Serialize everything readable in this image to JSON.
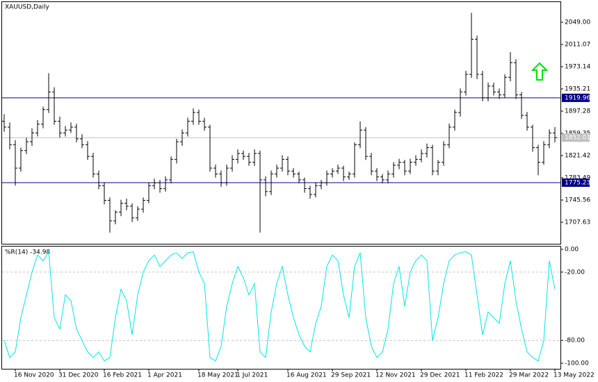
{
  "chart_data": {
    "type": "ohlc",
    "title": "XAUUSD,Daily",
    "categories": [
      null,
      null,
      "16 Nov 2020",
      null,
      null,
      null,
      null,
      null,
      null,
      null,
      "31 Dec 2020",
      null,
      null,
      null,
      null,
      null,
      null,
      null,
      "16 Feb 2021",
      null,
      null,
      null,
      null,
      null,
      null,
      null,
      "1 Apr 2021",
      null,
      null,
      null,
      null,
      null,
      null,
      null,
      null,
      "18 May 2021",
      null,
      null,
      null,
      null,
      null,
      null,
      "1 Jul 2021",
      null,
      null,
      null,
      null,
      null,
      null,
      null,
      null,
      "16 Aug 2021",
      null,
      null,
      null,
      null,
      null,
      null,
      null,
      "29 Sep 2021",
      null,
      null,
      null,
      null,
      null,
      null,
      null,
      "12 Nov 2021",
      null,
      null,
      null,
      null,
      null,
      null,
      null,
      "29 Dec 2021",
      null,
      null,
      null,
      null,
      null,
      null,
      null,
      "11 Feb 2022",
      null,
      null,
      null,
      null,
      null,
      null,
      null,
      "29 Mar 2022",
      null,
      null,
      null,
      null,
      null,
      null,
      null,
      "13 May 2022"
    ],
    "open": [
      1880,
      1870,
      1840,
      1800,
      1830,
      1845,
      1860,
      1875,
      1900,
      1930,
      1880,
      1860,
      1865,
      1870,
      1850,
      1840,
      1820,
      1790,
      1770,
      1745,
      1710,
      1725,
      1740,
      1735,
      1715,
      1730,
      1745,
      1770,
      1775,
      1765,
      1780,
      1815,
      1845,
      1860,
      1880,
      1895,
      1880,
      1870,
      1800,
      1790,
      1775,
      1800,
      1815,
      1825,
      1820,
      1810,
      1825,
      1780,
      1760,
      1790,
      1800,
      1815,
      1795,
      1790,
      1780,
      1765,
      1755,
      1770,
      1775,
      1790,
      1795,
      1800,
      1785,
      1790,
      1840,
      1865,
      1820,
      1795,
      1785,
      1780,
      1790,
      1805,
      1810,
      1795,
      1810,
      1815,
      1825,
      1835,
      1795,
      1810,
      1840,
      1870,
      1895,
      1930,
      1960,
      2020,
      1960,
      1920,
      1940,
      1930,
      1925,
      1955,
      1980,
      1925,
      1890,
      1870,
      1835,
      1810,
      1840,
      1860
    ],
    "high": [
      1892,
      1878,
      1848,
      1835,
      1852,
      1868,
      1882,
      1905,
      1962,
      1938,
      1888,
      1872,
      1878,
      1876,
      1858,
      1846,
      1826,
      1796,
      1776,
      1750,
      1728,
      1746,
      1748,
      1740,
      1735,
      1750,
      1776,
      1782,
      1780,
      1786,
      1820,
      1850,
      1866,
      1886,
      1902,
      1900,
      1886,
      1874,
      1806,
      1796,
      1806,
      1822,
      1832,
      1830,
      1826,
      1832,
      1830,
      1786,
      1796,
      1806,
      1822,
      1820,
      1800,
      1794,
      1784,
      1770,
      1776,
      1780,
      1796,
      1800,
      1806,
      1804,
      1794,
      1844,
      1880,
      1870,
      1826,
      1800,
      1790,
      1796,
      1810,
      1816,
      1814,
      1816,
      1822,
      1832,
      1842,
      1840,
      1814,
      1846,
      1876,
      1900,
      1936,
      1966,
      2065,
      2026,
      1966,
      1946,
      1946,
      1936,
      1960,
      1998,
      1986,
      1930,
      1896,
      1874,
      1840,
      1846,
      1866,
      1870
    ],
    "low": [
      1862,
      1832,
      1770,
      1794,
      1824,
      1838,
      1854,
      1868,
      1894,
      1874,
      1852,
      1854,
      1860,
      1844,
      1834,
      1814,
      1784,
      1764,
      1738,
      1690,
      1704,
      1718,
      1728,
      1708,
      1710,
      1724,
      1740,
      1764,
      1758,
      1760,
      1774,
      1808,
      1838,
      1854,
      1874,
      1874,
      1864,
      1794,
      1784,
      1768,
      1770,
      1794,
      1808,
      1814,
      1804,
      1804,
      1690,
      1752,
      1754,
      1784,
      1794,
      1788,
      1784,
      1774,
      1758,
      1748,
      1750,
      1764,
      1770,
      1784,
      1790,
      1778,
      1780,
      1784,
      1834,
      1814,
      1788,
      1778,
      1774,
      1774,
      1784,
      1798,
      1788,
      1790,
      1804,
      1810,
      1818,
      1788,
      1788,
      1804,
      1834,
      1864,
      1888,
      1924,
      1954,
      1952,
      1914,
      1914,
      1924,
      1918,
      1920,
      1948,
      1918,
      1884,
      1864,
      1828,
      1788,
      1806,
      1834,
      1844
    ],
    "close": [
      1870,
      1840,
      1800,
      1830,
      1845,
      1860,
      1875,
      1900,
      1930,
      1880,
      1860,
      1865,
      1870,
      1850,
      1840,
      1820,
      1790,
      1770,
      1745,
      1710,
      1725,
      1740,
      1735,
      1715,
      1730,
      1745,
      1770,
      1775,
      1765,
      1780,
      1815,
      1845,
      1860,
      1880,
      1895,
      1880,
      1870,
      1800,
      1790,
      1775,
      1800,
      1815,
      1825,
      1820,
      1810,
      1825,
      1780,
      1760,
      1790,
      1800,
      1815,
      1795,
      1790,
      1780,
      1765,
      1755,
      1770,
      1775,
      1790,
      1795,
      1800,
      1785,
      1790,
      1840,
      1865,
      1820,
      1795,
      1785,
      1780,
      1790,
      1805,
      1810,
      1795,
      1810,
      1815,
      1825,
      1835,
      1795,
      1810,
      1840,
      1870,
      1895,
      1930,
      1960,
      2020,
      1960,
      1920,
      1940,
      1930,
      1925,
      1955,
      1980,
      1925,
      1890,
      1870,
      1835,
      1810,
      1840,
      1860,
      1852.01
    ],
    "color": "#000000",
    "ylim": [
      1672.07,
      2083.37
    ],
    "yticks": [
      {
        "value": 2049,
        "label": "2049.00"
      },
      2011.07,
      1973.14,
      1935.21,
      1897.28,
      1859.35,
      1821.42,
      1783.49,
      1745.56,
      1707.63
    ],
    "hlines": [
      {
        "value": 1919.96,
        "color": "#000080"
      },
      {
        "value": 1775.23,
        "color": "#000080"
      },
      {
        "value": 1852.01,
        "color": "#c0c0c0"
      }
    ],
    "indicator": {
      "type": "line",
      "title": "%R(14) -34.98",
      "color": "#00e5e5",
      "values": [
        -80,
        -95,
        -90,
        -60,
        -40,
        -20,
        -5,
        -10,
        -2,
        -60,
        -70,
        -40,
        -45,
        -70,
        -80,
        -90,
        -95,
        -90,
        -98,
        -95,
        -60,
        -35,
        -45,
        -75,
        -40,
        -20,
        -10,
        -5,
        -15,
        -10,
        -5,
        -3,
        -8,
        -3,
        -2,
        -20,
        -30,
        -95,
        -98,
        -85,
        -50,
        -30,
        -15,
        -25,
        -40,
        -30,
        -90,
        -95,
        -55,
        -30,
        -15,
        -40,
        -60,
        -75,
        -85,
        -90,
        -65,
        -50,
        -15,
        -5,
        -10,
        -40,
        -60,
        -15,
        -3,
        -60,
        -85,
        -95,
        -90,
        -70,
        -30,
        -15,
        -50,
        -20,
        -10,
        -5,
        -10,
        -80,
        -60,
        -30,
        -10,
        -5,
        -3,
        -2,
        -5,
        -40,
        -75,
        -55,
        -60,
        -65,
        -30,
        -10,
        -45,
        -70,
        -90,
        -95,
        -98,
        -80,
        -10,
        -34.98
      ],
      "ylim": [
        -104.27,
        2.44
      ],
      "yticks": [
        {
          "value": 0,
          "label": "0.00"
        },
        {
          "value": -20,
          "label": "-20.00"
        },
        {
          "value": -80,
          "label": "-80.00"
        },
        {
          "value": -100,
          "label": "-100.00"
        }
      ]
    }
  }
}
